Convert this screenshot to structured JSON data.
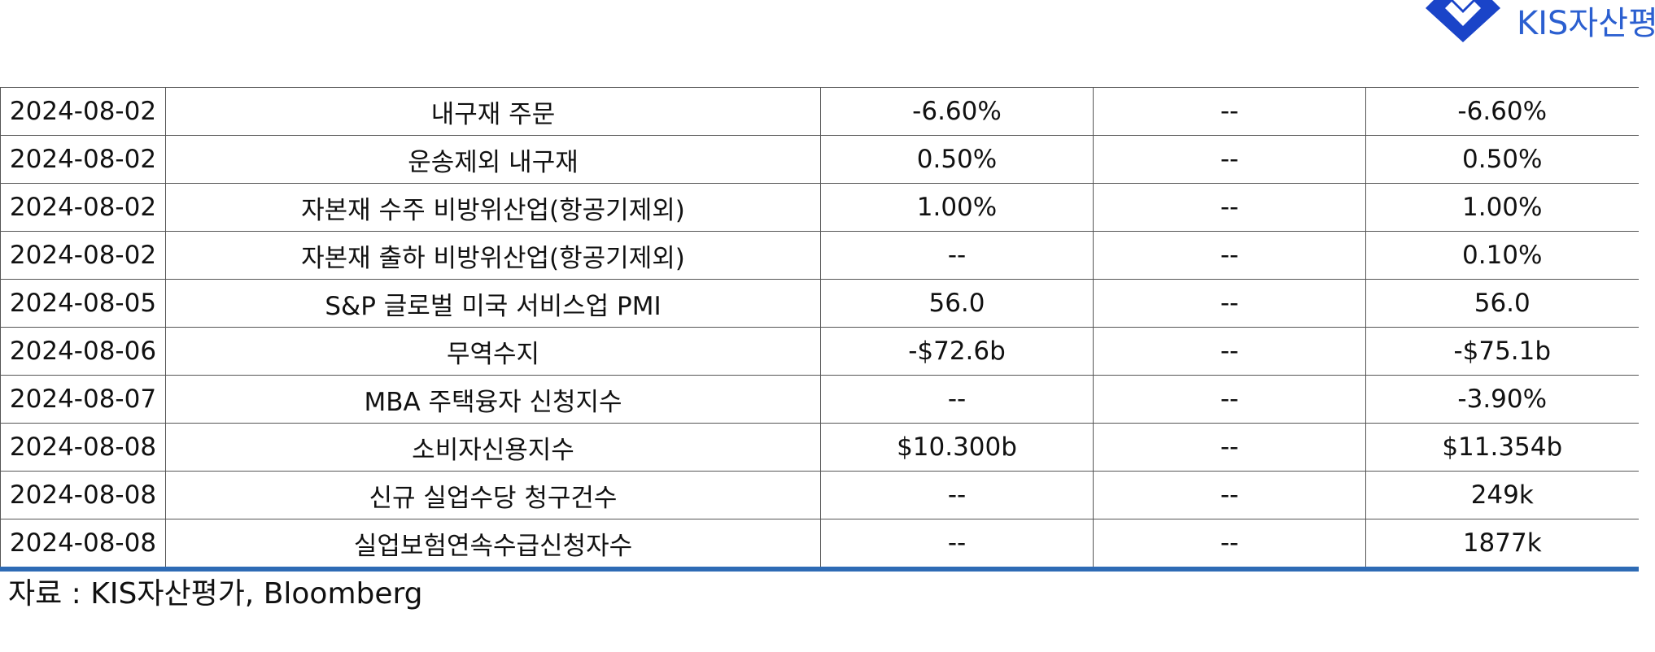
{
  "logo": {
    "text": "KIS자산평",
    "color": "#1a44c8"
  },
  "rows": [
    [
      "2024-08-02",
      "내구재 주문",
      "-6.60%",
      "--",
      "-6.60%"
    ],
    [
      "2024-08-02",
      "운송제외 내구재",
      "0.50%",
      "--",
      "0.50%"
    ],
    [
      "2024-08-02",
      "자본재 수주 비방위산업(항공기제외)",
      "1.00%",
      "--",
      "1.00%"
    ],
    [
      "2024-08-02",
      "자본재 출하 비방위산업(항공기제외)",
      "--",
      "--",
      "0.10%"
    ],
    [
      "2024-08-05",
      "S&P 글로벌 미국 서비스업 PMI",
      "56.0",
      "--",
      "56.0"
    ],
    [
      "2024-08-06",
      "무역수지",
      "-$72.6b",
      "--",
      "-$75.1b"
    ],
    [
      "2024-08-07",
      "MBA 주택융자 신청지수",
      "--",
      "--",
      "-3.90%"
    ],
    [
      "2024-08-08",
      "소비자신용지수",
      "$10.300b",
      "--",
      "$11.354b"
    ],
    [
      "2024-08-08",
      "신규 실업수당 청구건수",
      "--",
      "--",
      "249k"
    ],
    [
      "2024-08-08",
      "실업보험연속수급신청자수",
      "--",
      "--",
      "1877k"
    ]
  ],
  "source": "자료 : KIS자산평가, Bloomberg",
  "colors": {
    "rule": "#2e6bb5",
    "grid": "#555555"
  }
}
